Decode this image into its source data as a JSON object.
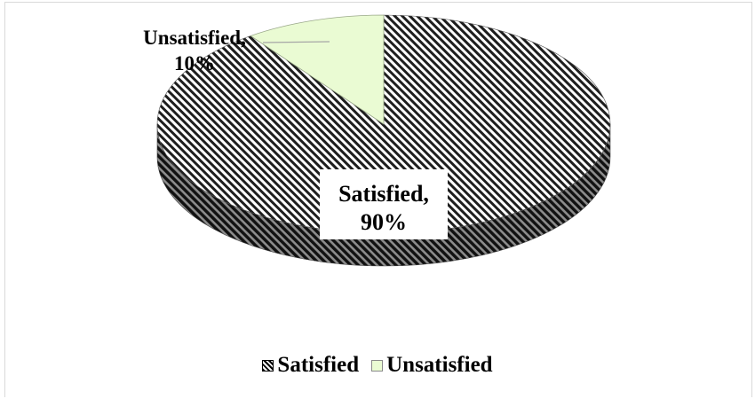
{
  "chart_data": {
    "type": "pie",
    "style": "3d",
    "title": "",
    "slices": [
      {
        "label": "Satisfied",
        "value": 90,
        "data_label": [
          "Satisfied,",
          "90%"
        ],
        "fill": "hatched-black",
        "color": "#2b2b2b"
      },
      {
        "label": "Unsatisfied",
        "value": 10,
        "data_label": [
          "Unsatisfied,",
          "10%"
        ],
        "fill": "solid",
        "color": "#eafbd3"
      }
    ],
    "legend": {
      "position": "bottom",
      "items": [
        "Satisfied",
        "Unsatisfied"
      ]
    }
  }
}
